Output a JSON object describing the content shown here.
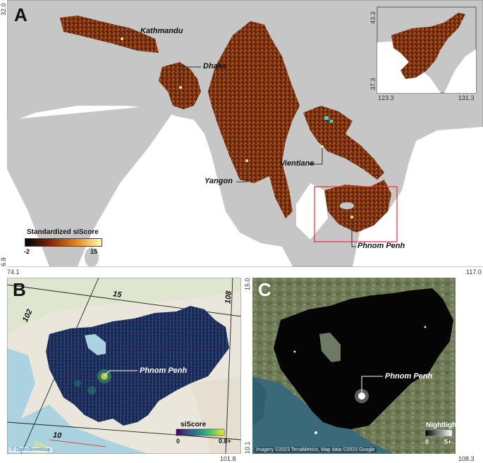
{
  "panels": {
    "a": {
      "letter": "A",
      "top_lat": "32.0",
      "bottom_lat": "6.9",
      "left_lon": "74.1",
      "right_lon": "117.0",
      "cities": {
        "kathmandu": "Kathmandu",
        "dhaka": "Dhaka",
        "yangon": "Yangon",
        "vientiane": "Vientiane",
        "phnom_penh": "Phnom Penh"
      },
      "legend": {
        "title": "Standardized siScore",
        "min": "-2",
        "max": "15"
      },
      "inset": {
        "top_lat": "43.3",
        "bottom_lat": "37.3",
        "left_lon": "123.3",
        "right_lon": "131.3"
      }
    },
    "b": {
      "letter": "B",
      "grid_labels": {
        "lat15": "15",
        "lat10": "10",
        "lon102": "102",
        "lon108": "108"
      },
      "city": "Phnom Penh",
      "legend": {
        "title": "siScore",
        "min": "0",
        "max": "0.8+"
      },
      "attribution": "© OpenStreetMap",
      "bottom_left": "101.8"
    },
    "c": {
      "letter": "C",
      "top_lat": "15.0",
      "bottom_lat": "10.1",
      "right_lon": "108.3",
      "city": "Phnom Penh",
      "legend": {
        "title": "Nightlight",
        "min": "0",
        "max": "5+"
      },
      "attribution": "Imagery ©2023 TerraMetrics, Map data ©2023 Google"
    }
  },
  "colors": {
    "sea_gray": "#c8c8c8",
    "land_white": "#ffffff",
    "siscore_dark": "#3a1506",
    "siscore_mid": "#8a3a10",
    "siscore_bright": "#d06818",
    "phnom_penh_box": "#e03030"
  }
}
